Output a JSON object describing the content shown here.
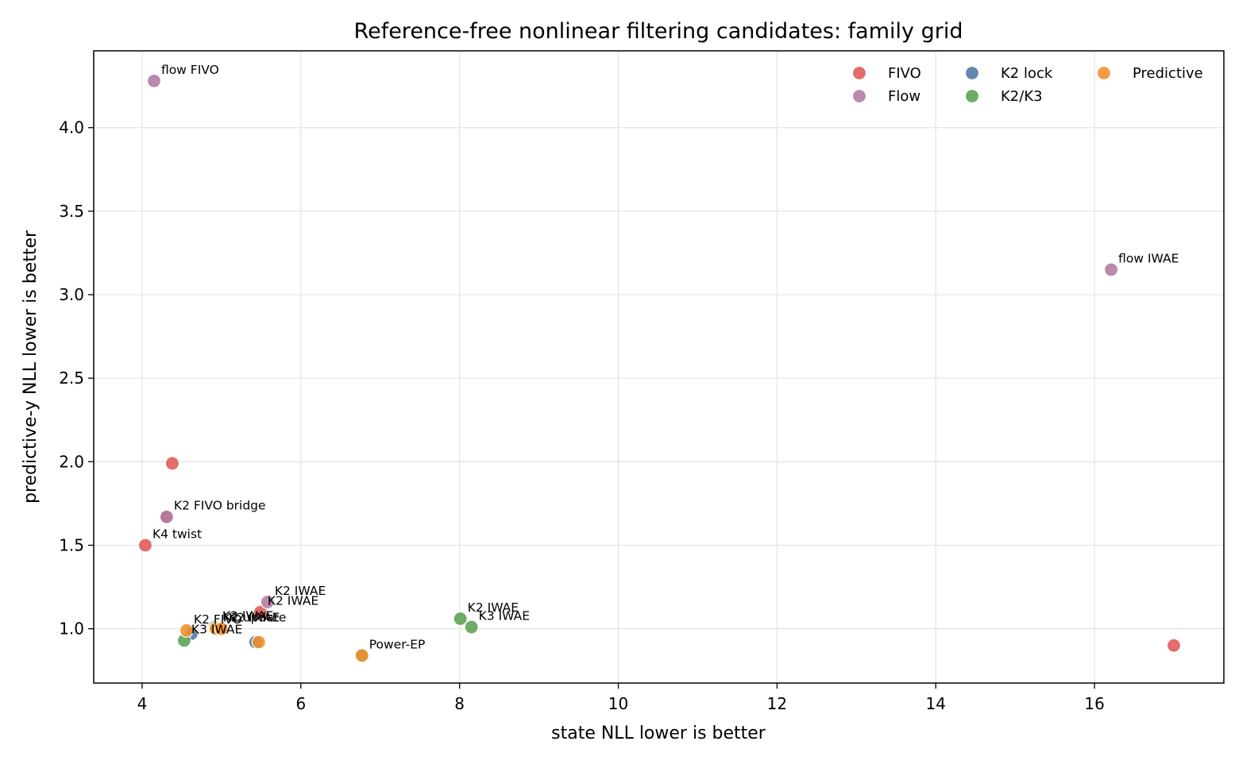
{
  "chart_data": {
    "type": "scatter",
    "title": "Reference-free nonlinear filtering candidates: family grid",
    "xlabel": "state NLL lower is better",
    "ylabel": "predictive-y NLL lower is better",
    "xlim": [
      3.39,
      17.63
    ],
    "ylim": [
      0.675,
      4.46
    ],
    "xticks": [
      4,
      6,
      8,
      10,
      12,
      14,
      16
    ],
    "yticks": [
      1.0,
      1.5,
      2.0,
      2.5,
      3.0,
      3.5,
      4.0
    ],
    "grid": true,
    "legend_position": "top-right",
    "families": [
      {
        "name": "FIVO",
        "color": "#e15759"
      },
      {
        "name": "Flow",
        "color": "#b07aa1"
      },
      {
        "name": "K2 lock",
        "color": "#4e79a7"
      },
      {
        "name": "K2/K3",
        "color": "#59a14f"
      },
      {
        "name": "Predictive",
        "color": "#f28e2b"
      }
    ],
    "points": [
      {
        "family": "Flow",
        "x": 4.15,
        "y": 4.28,
        "label": "flow FIVO"
      },
      {
        "family": "Flow",
        "x": 16.21,
        "y": 3.15,
        "label": "flow IWAE"
      },
      {
        "family": "FIVO",
        "x": 4.38,
        "y": 1.99,
        "label": ""
      },
      {
        "family": "FIVO",
        "x": 4.3,
        "y": 1.67,
        "label": ""
      },
      {
        "family": "Flow",
        "x": 4.31,
        "y": 1.67,
        "label": "K2 FIVO bridge"
      },
      {
        "family": "FIVO",
        "x": 4.04,
        "y": 1.5,
        "label": "K4 twist"
      },
      {
        "family": "FIVO",
        "x": 17.0,
        "y": 0.9,
        "label": ""
      },
      {
        "family": "FIVO",
        "x": 5.49,
        "y": 1.1,
        "label": "K2 IWAE"
      },
      {
        "family": "Flow",
        "x": 5.58,
        "y": 1.16,
        "label": "K2 IWAE"
      },
      {
        "family": "K2/K3",
        "x": 8.01,
        "y": 1.06,
        "label": "K2 IWAE"
      },
      {
        "family": "K2/K3",
        "x": 8.15,
        "y": 1.01,
        "label": "K3 IWAE"
      },
      {
        "family": "K2 lock",
        "x": 4.62,
        "y": 0.97,
        "label": ""
      },
      {
        "family": "K2/K3",
        "x": 4.53,
        "y": 0.93,
        "label": "K3 IWAE"
      },
      {
        "family": "Predictive",
        "x": 4.56,
        "y": 0.99,
        "label": "K2 FIVO"
      },
      {
        "family": "K2/K3",
        "x": 4.92,
        "y": 1.01,
        "label": "K2 IWAE"
      },
      {
        "family": "Predictive",
        "x": 4.93,
        "y": 1.0,
        "label": "K2 update"
      },
      {
        "family": "Predictive",
        "x": 5.0,
        "y": 1.0,
        "label": "K2 IWAE"
      },
      {
        "family": "K2 lock",
        "x": 5.43,
        "y": 0.92,
        "label": ""
      },
      {
        "family": "Predictive",
        "x": 5.47,
        "y": 0.92,
        "label": ""
      },
      {
        "family": "K2/K3",
        "x": 6.77,
        "y": 0.84,
        "label": ""
      },
      {
        "family": "Predictive",
        "x": 6.77,
        "y": 0.84,
        "label": "Power-EP"
      }
    ]
  }
}
